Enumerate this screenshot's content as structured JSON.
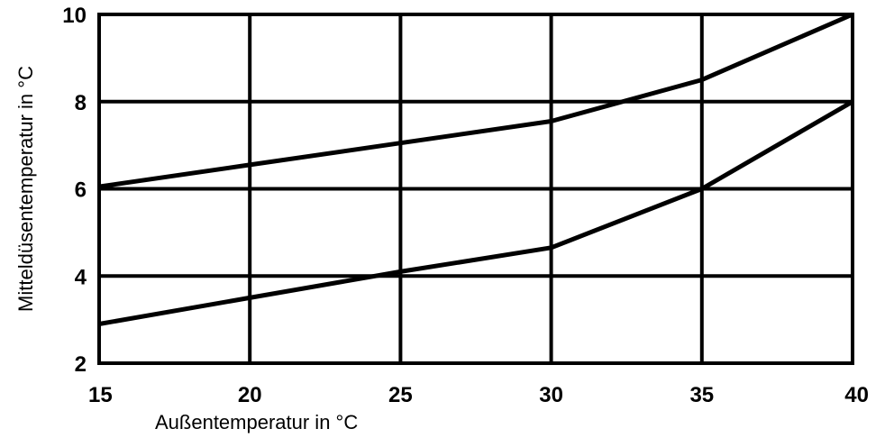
{
  "chart_data": {
    "type": "line",
    "title": "",
    "xlabel": "Außentemperatur in °C",
    "ylabel": "Mitteldüsentemperatur in °C",
    "xlim": [
      15,
      40
    ],
    "ylim": [
      2,
      10
    ],
    "x_ticks": [
      15,
      20,
      25,
      30,
      35,
      40
    ],
    "y_ticks": [
      2,
      4,
      6,
      8,
      10
    ],
    "grid": true,
    "legend": "none",
    "line_color": "#000000",
    "series": [
      {
        "x": [
          15,
          20,
          25,
          30,
          35,
          40
        ],
        "values": [
          6.05,
          6.55,
          7.05,
          7.55,
          8.5,
          10
        ]
      },
      {
        "x": [
          15,
          20,
          25,
          30,
          35,
          40
        ],
        "values": [
          2.9,
          3.5,
          4.1,
          4.65,
          6.0,
          8.0
        ]
      }
    ]
  }
}
